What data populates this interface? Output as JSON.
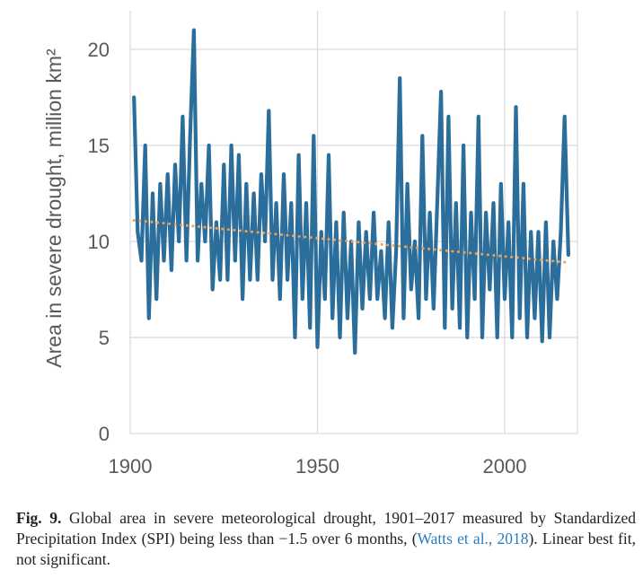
{
  "chart_data": {
    "type": "line",
    "ylabel": "Area in severe drought, million km²",
    "xlim": [
      1900,
      2020
    ],
    "ylim": [
      0,
      22
    ],
    "xticks": [
      1900,
      1950,
      2000
    ],
    "yticks": [
      0,
      5,
      10,
      15,
      20
    ],
    "grid": "vertical and horizontal",
    "colors": {
      "series": "#2b6e9c",
      "trend": "#f0a04b",
      "grid": "#d9d9d9"
    },
    "series": [
      {
        "style": "solid",
        "x": [
          1901,
          1902,
          1903,
          1904,
          1905,
          1906,
          1907,
          1908,
          1909,
          1910,
          1911,
          1912,
          1913,
          1914,
          1915,
          1916,
          1917,
          1918,
          1919,
          1920,
          1921,
          1922,
          1923,
          1924,
          1925,
          1926,
          1927,
          1928,
          1929,
          1930,
          1931,
          1932,
          1933,
          1934,
          1935,
          1936,
          1937,
          1938,
          1939,
          1940,
          1941,
          1942,
          1943,
          1944,
          1945,
          1946,
          1947,
          1948,
          1949,
          1950,
          1951,
          1952,
          1953,
          1954,
          1955,
          1956,
          1957,
          1958,
          1959,
          1960,
          1961,
          1962,
          1963,
          1964,
          1965,
          1966,
          1967,
          1968,
          1969,
          1970,
          1971,
          1972,
          1973,
          1974,
          1975,
          1976,
          1977,
          1978,
          1979,
          1980,
          1981,
          1982,
          1983,
          1984,
          1985,
          1986,
          1987,
          1988,
          1989,
          1990,
          1991,
          1992,
          1993,
          1994,
          1995,
          1996,
          1997,
          1998,
          1999,
          2000,
          2001,
          2002,
          2003,
          2004,
          2005,
          2006,
          2007,
          2008,
          2009,
          2010,
          2011,
          2012,
          2013,
          2014,
          2015,
          2016,
          2017
        ],
        "values": [
          17.5,
          10.5,
          9.0,
          15.0,
          6.0,
          12.5,
          7.0,
          13.0,
          9.0,
          13.5,
          8.5,
          14.0,
          10.0,
          16.5,
          9.0,
          15.5,
          21.0,
          9.0,
          13.0,
          10.0,
          15.0,
          7.5,
          11.0,
          8.0,
          14.0,
          8.0,
          15.0,
          9.0,
          14.5,
          7.0,
          13.0,
          8.0,
          12.5,
          8.0,
          13.5,
          10.0,
          16.8,
          8.0,
          12.0,
          7.0,
          13.5,
          8.0,
          12.0,
          5.0,
          14.5,
          7.0,
          12.0,
          5.5,
          15.5,
          4.5,
          10.5,
          7.0,
          14.5,
          6.0,
          11.0,
          5.0,
          11.5,
          6.0,
          10.0,
          4.2,
          11.0,
          6.5,
          10.5,
          7.0,
          11.5,
          7.0,
          9.5,
          6.0,
          11.0,
          5.5,
          9.5,
          18.5,
          6.0,
          13.0,
          7.5,
          10.0,
          6.0,
          15.5,
          7.0,
          11.5,
          6.5,
          12.0,
          17.8,
          5.5,
          16.5,
          6.5,
          12.0,
          5.5,
          15.0,
          5.0,
          11.5,
          7.0,
          16.5,
          5.0,
          11.5,
          7.5,
          12.0,
          5.0,
          13.0,
          7.0,
          11.0,
          5.0,
          17.0,
          6.0,
          13.0,
          5.0,
          10.5,
          6.0,
          10.5,
          4.8,
          11.0,
          5.0,
          10.0,
          7.0,
          10.5,
          16.5,
          9.3
        ]
      }
    ],
    "trend": {
      "style": "dotted",
      "x": [
        1901,
        2017
      ],
      "values": [
        11.1,
        8.9
      ]
    }
  },
  "caption": {
    "figure_label": "Fig. 9.",
    "text_1": " Global area in severe meteorological drought, 1901–2017 measured by Standardized Precipitation Index (SPI) being less than −1.5 over 6 months, (",
    "reference": "Watts et al., 2018",
    "text_2": "). Linear best fit, not significant."
  }
}
